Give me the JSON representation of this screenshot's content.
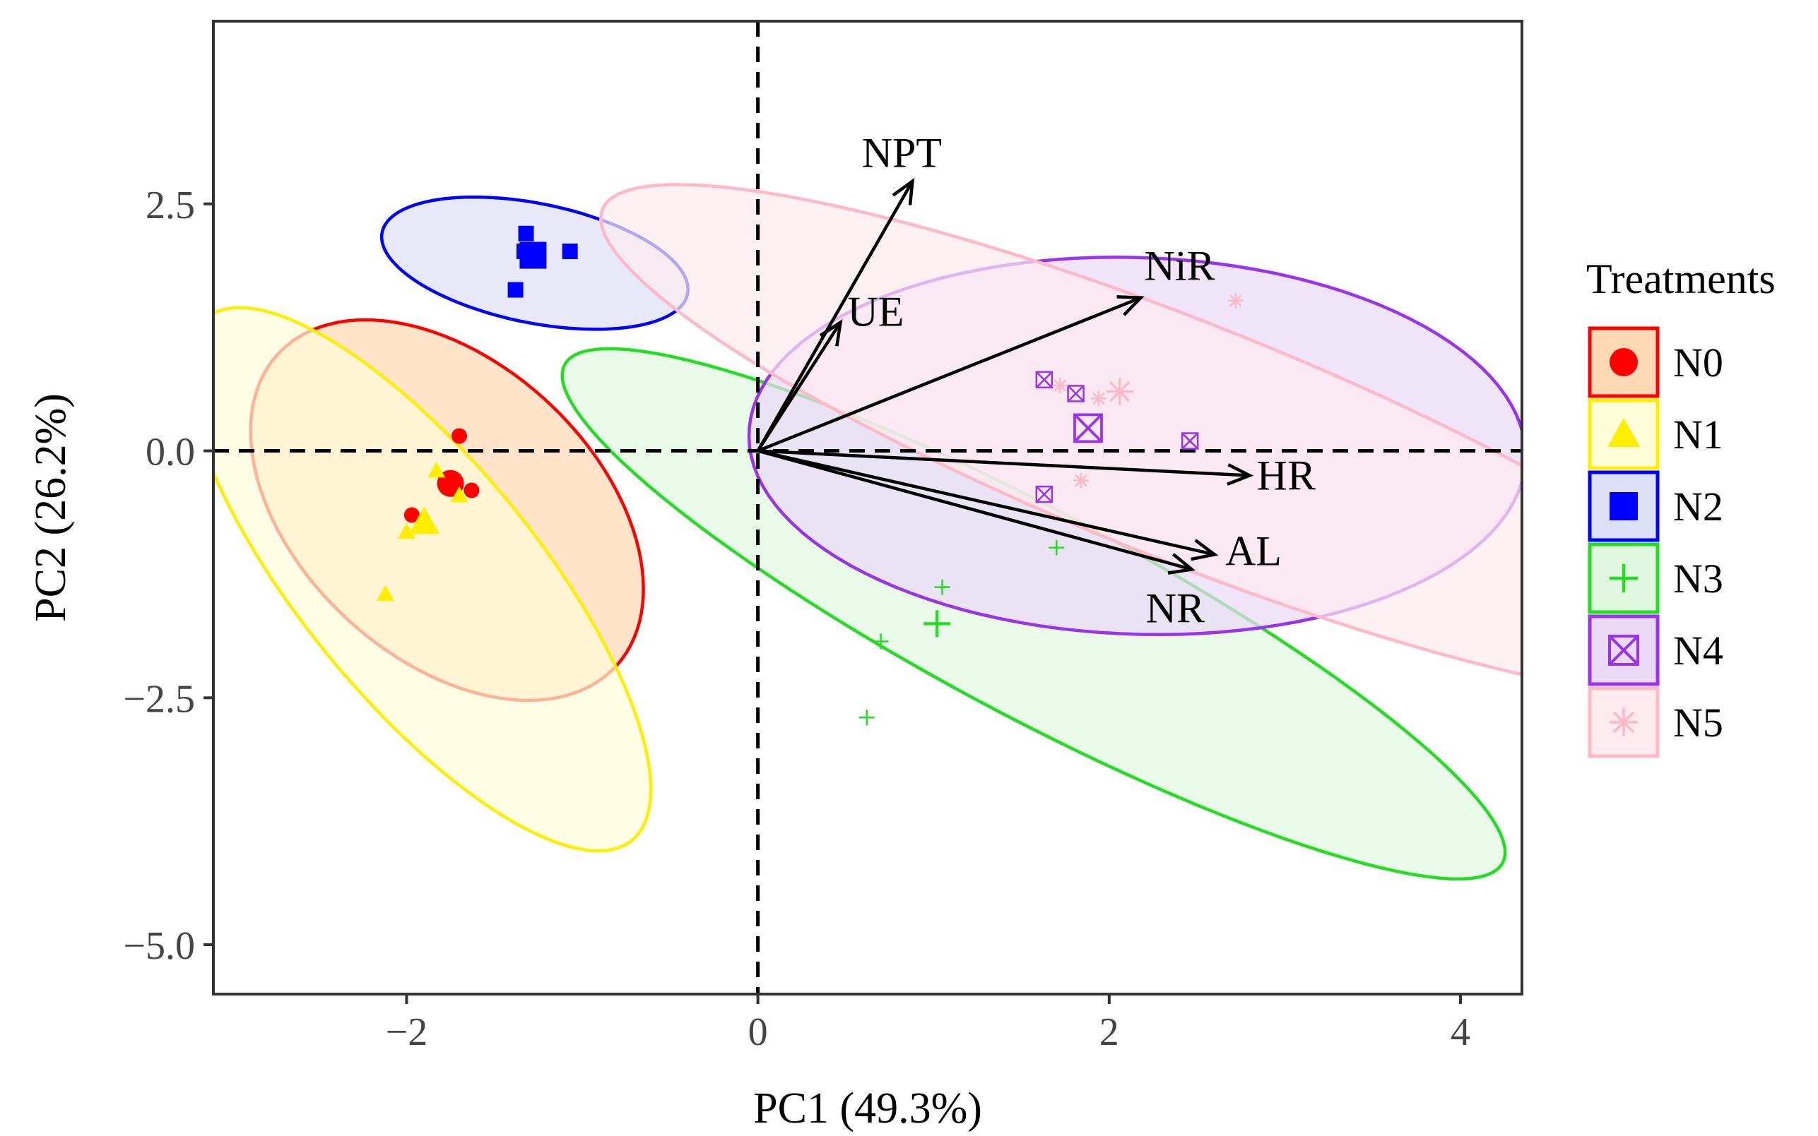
{
  "chart_data": {
    "type": "scatter",
    "subtype": "pca-biplot",
    "xlabel": "PC1 (49.3%)",
    "ylabel": "PC2 (26.2%)",
    "xlim": [
      -3.1,
      4.35
    ],
    "ylim": [
      -5.5,
      4.35
    ],
    "x_ticks": [
      {
        "value": -2,
        "label": "−2"
      },
      {
        "value": 0,
        "label": "0"
      },
      {
        "value": 2,
        "label": "2"
      },
      {
        "value": 4,
        "label": "4"
      }
    ],
    "y_ticks": [
      {
        "value": 2.5,
        "label": "2.5"
      },
      {
        "value": 0,
        "label": "0.0"
      },
      {
        "value": -2.5,
        "label": "−2.5"
      },
      {
        "value": -5,
        "label": "−5.0"
      }
    ],
    "grid": false,
    "reference_lines": {
      "x": 0,
      "y": 0,
      "style": "dashed"
    },
    "legend": {
      "title": "Treatments",
      "placement": "right"
    },
    "series": [
      {
        "name": "N0",
        "color": "#ff0000",
        "fill": "#ffd9b3",
        "marker": "circle",
        "ellipse": {
          "cx": -1.77,
          "cy": -0.6,
          "rx": 0.98,
          "ry": 2.0,
          "angle_deg": 18
        },
        "centroid": [
          -1.75,
          -0.33
        ],
        "points": [
          [
            -1.7,
            0.15
          ],
          [
            -1.97,
            -0.65
          ],
          [
            -1.63,
            -0.4
          ],
          [
            -1.75,
            -0.33
          ]
        ]
      },
      {
        "name": "N1",
        "color": "#ffee00",
        "fill": "#fffcd9",
        "marker": "triangle",
        "ellipse": {
          "cx": -1.93,
          "cy": -1.3,
          "rx": 0.78,
          "ry": 2.95,
          "angle_deg": 22
        },
        "centroid": [
          -1.9,
          -0.72
        ],
        "points": [
          [
            -1.83,
            -0.2
          ],
          [
            -2.0,
            -0.82
          ],
          [
            -2.12,
            -1.45
          ],
          [
            -1.7,
            -0.45
          ],
          [
            -1.9,
            -0.72
          ]
        ]
      },
      {
        "name": "N2",
        "color": "#0000ff",
        "fill": "#dde0f7",
        "marker": "square",
        "ellipse": {
          "cx": -1.27,
          "cy": 1.9,
          "rx": 0.57,
          "ry": 0.94,
          "angle_deg": 62
        },
        "centroid": [
          -1.28,
          1.98
        ],
        "points": [
          [
            -1.32,
            2.2
          ],
          [
            -1.33,
            2.02
          ],
          [
            -1.07,
            2.02
          ],
          [
            -1.38,
            1.63
          ],
          [
            -1.28,
            1.98
          ]
        ]
      },
      {
        "name": "N3",
        "color": "#22dd22",
        "fill": "#e0f8e0",
        "marker": "plus",
        "ellipse": {
          "cx": 1.57,
          "cy": -1.65,
          "rx": 0.85,
          "ry": 3.7,
          "angle_deg": 45
        },
        "centroid": [
          1.02,
          -1.75
        ],
        "points": [
          [
            1.7,
            -0.98
          ],
          [
            1.05,
            -1.38
          ],
          [
            0.7,
            -1.93
          ],
          [
            0.62,
            -2.7
          ],
          [
            1.02,
            -1.75
          ]
        ]
      },
      {
        "name": "N4",
        "color": "#9933ee",
        "fill": "#ead9f7",
        "marker": "square-x",
        "ellipse": {
          "cx": 2.16,
          "cy": 0.05,
          "rx": 1.9,
          "ry": 2.22,
          "angle_deg": 80
        },
        "centroid": [
          1.88,
          0.23
        ],
        "points": [
          [
            1.63,
            0.72
          ],
          [
            1.81,
            0.58
          ],
          [
            1.63,
            -0.44
          ],
          [
            2.46,
            0.1
          ],
          [
            1.88,
            0.23
          ]
        ]
      },
      {
        "name": "N5",
        "color": "#ffb8c8",
        "fill": "#fdebef",
        "marker": "asterisk",
        "ellipse": {
          "cx": 2.44,
          "cy": 0.09,
          "rx": 1.05,
          "ry": 4.1,
          "angle_deg": 53
        },
        "centroid": [
          2.06,
          0.6
        ],
        "points": [
          [
            2.72,
            1.52
          ],
          [
            1.94,
            0.53
          ],
          [
            1.84,
            -0.3
          ],
          [
            1.72,
            0.66
          ],
          [
            2.06,
            0.6
          ]
        ]
      }
    ],
    "loadings": [
      {
        "name": "NPT",
        "x": 0.88,
        "y": 2.73
      },
      {
        "name": "UE",
        "x": 0.47,
        "y": 1.3
      },
      {
        "name": "NiR",
        "x": 2.18,
        "y": 1.55
      },
      {
        "name": "HR",
        "x": 2.8,
        "y": -0.25
      },
      {
        "name": "AL",
        "x": 2.6,
        "y": -1.05
      },
      {
        "name": "NR",
        "x": 2.47,
        "y": -1.2
      }
    ]
  }
}
